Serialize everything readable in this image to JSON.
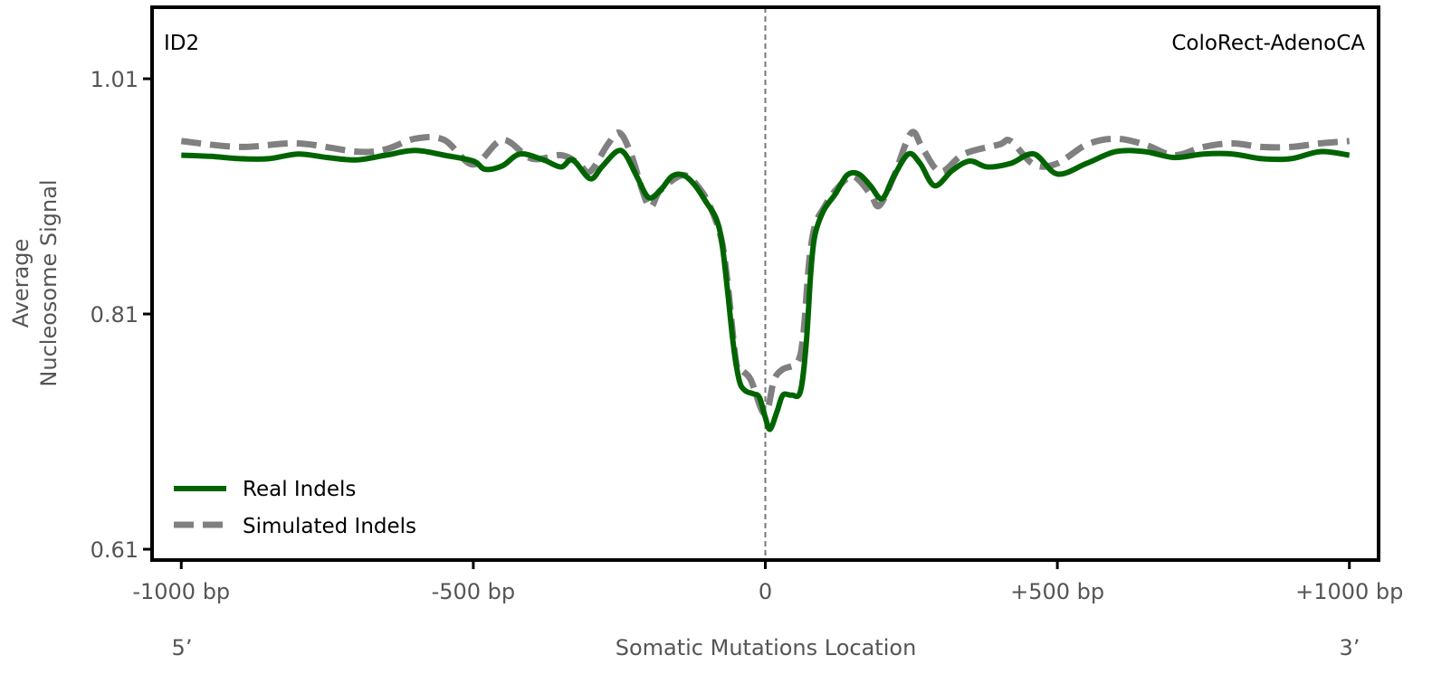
{
  "chart_data": {
    "type": "line",
    "title_left": "ID2",
    "title_right": "ColoRect-AdenoCA",
    "xlabel": "Somatic Mutations Location",
    "ylabel_line1": "Average",
    "ylabel_line2": "Nucleosome Signal",
    "x_end_left": "5’",
    "x_end_right": "3’",
    "xlim": [
      -1050,
      1050
    ],
    "ylim": [
      0.6008,
      1.0708
    ],
    "xticks": [
      -1000,
      -500,
      0,
      500,
      1000
    ],
    "xtick_labels": [
      "-1000 bp",
      "-500 bp",
      "0",
      "+500 bp",
      "+1000 bp"
    ],
    "yticks": [
      0.61,
      0.81,
      1.01
    ],
    "ytick_labels": [
      "0.61",
      "0.81",
      "1.01"
    ],
    "vline_x": 0,
    "legend_position": "lower-left",
    "series": [
      {
        "name": "Real Indels",
        "color": "#006400",
        "style": "solid",
        "x": [
          -1000,
          -950,
          -900,
          -850,
          -800,
          -750,
          -700,
          -650,
          -600,
          -550,
          -500,
          -480,
          -450,
          -420,
          -380,
          -350,
          -330,
          -300,
          -280,
          -255,
          -240,
          -220,
          -200,
          -180,
          -160,
          -140,
          -120,
          -100,
          -85,
          -75,
          -65,
          -55,
          -45,
          -35,
          -20,
          -10,
          0,
          8,
          20,
          30,
          45,
          60,
          70,
          78,
          85,
          100,
          120,
          140,
          160,
          180,
          200,
          220,
          245,
          265,
          290,
          320,
          350,
          380,
          420,
          460,
          500,
          550,
          600,
          650,
          700,
          750,
          800,
          850,
          900,
          950,
          1000
        ],
        "values": [
          0.945,
          0.944,
          0.942,
          0.942,
          0.946,
          0.943,
          0.941,
          0.945,
          0.949,
          0.945,
          0.94,
          0.933,
          0.936,
          0.946,
          0.941,
          0.935,
          0.941,
          0.925,
          0.935,
          0.948,
          0.946,
          0.927,
          0.909,
          0.915,
          0.927,
          0.928,
          0.919,
          0.904,
          0.892,
          0.873,
          0.831,
          0.785,
          0.754,
          0.745,
          0.742,
          0.739,
          0.722,
          0.712,
          0.727,
          0.741,
          0.741,
          0.744,
          0.785,
          0.846,
          0.877,
          0.898,
          0.912,
          0.928,
          0.929,
          0.919,
          0.908,
          0.927,
          0.946,
          0.938,
          0.919,
          0.932,
          0.94,
          0.935,
          0.938,
          0.946,
          0.929,
          0.938,
          0.948,
          0.948,
          0.943,
          0.946,
          0.946,
          0.942,
          0.942,
          0.948,
          0.945
        ]
      },
      {
        "name": "Simulated Indels",
        "color": "#808080",
        "style": "dashed",
        "x": [
          -1000,
          -900,
          -800,
          -700,
          -650,
          -600,
          -550,
          -500,
          -450,
          -400,
          -350,
          -320,
          -300,
          -270,
          -250,
          -230,
          -200,
          -180,
          -140,
          -110,
          -90,
          -75,
          -65,
          -50,
          -40,
          -25,
          -5,
          5,
          15,
          30,
          55,
          65,
          75,
          85,
          100,
          120,
          150,
          180,
          195,
          220,
          250,
          270,
          300,
          340,
          400,
          420,
          460,
          500,
          550,
          600,
          650,
          700,
          750,
          800,
          850,
          900,
          950,
          1000
        ],
        "values": [
          0.957,
          0.952,
          0.955,
          0.948,
          0.95,
          0.959,
          0.958,
          0.937,
          0.958,
          0.942,
          0.945,
          0.938,
          0.931,
          0.954,
          0.964,
          0.946,
          0.902,
          0.915,
          0.928,
          0.915,
          0.896,
          0.873,
          0.838,
          0.769,
          0.762,
          0.754,
          0.727,
          0.731,
          0.754,
          0.763,
          0.769,
          0.792,
          0.854,
          0.885,
          0.9,
          0.915,
          0.927,
          0.912,
          0.902,
          0.927,
          0.964,
          0.95,
          0.931,
          0.946,
          0.954,
          0.957,
          0.937,
          0.938,
          0.954,
          0.959,
          0.954,
          0.945,
          0.952,
          0.955,
          0.952,
          0.952,
          0.955,
          0.957
        ]
      }
    ]
  }
}
